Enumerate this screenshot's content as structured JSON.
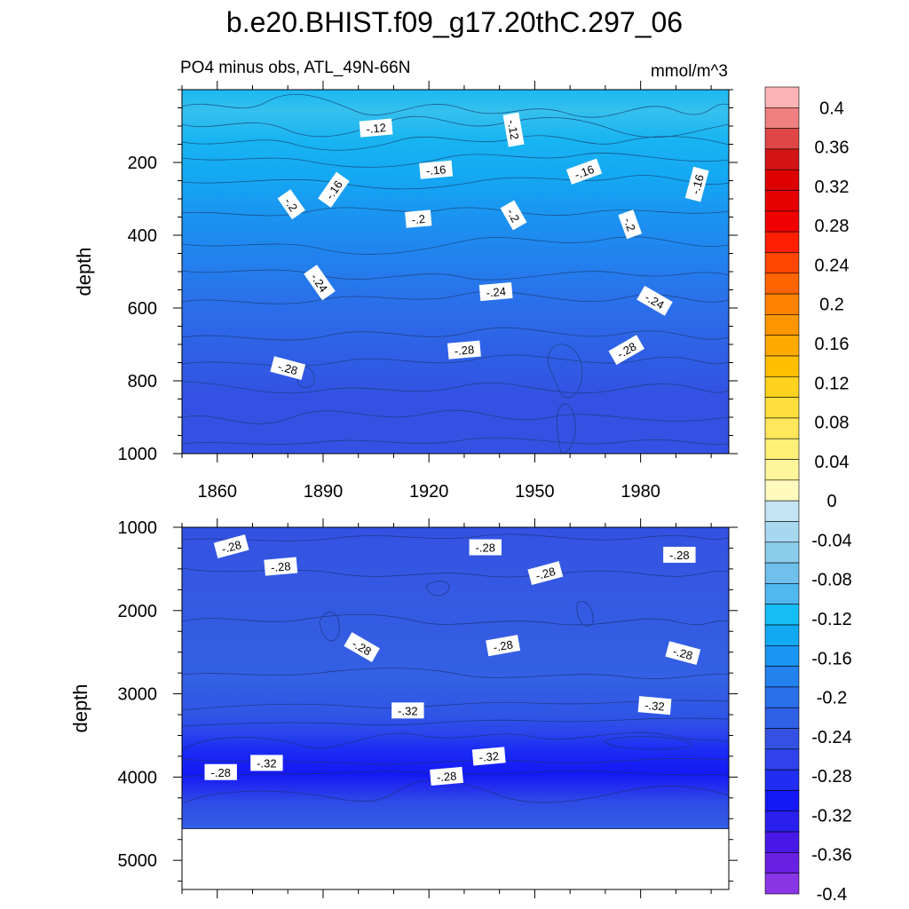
{
  "title": "b.e20.BHIST.f09_g17.20thC.297_06",
  "subtitle_left": "PO4 minus obs, ATL_49N-66N",
  "subtitle_right": "mmol/m^3",
  "colorbar": {
    "tick_labels": [
      "0.4",
      "0.36",
      "0.32",
      "0.28",
      "0.24",
      "0.2",
      "0.16",
      "0.12",
      "0.08",
      "0.04",
      "0",
      "-0.04",
      "-0.08",
      "-0.12",
      "-0.16",
      "-0.2",
      "-0.24",
      "-0.28",
      "-0.32",
      "-0.36",
      "-0.4"
    ],
    "colors": [
      "#fbb4b4",
      "#f08080",
      "#e04646",
      "#d21414",
      "#dc0000",
      "#e60000",
      "#f00000",
      "#ff1e00",
      "#ff4600",
      "#ff6400",
      "#ff8200",
      "#ff9600",
      "#ffaa00",
      "#ffbe00",
      "#ffd21e",
      "#ffde3c",
      "#ffe65a",
      "#fff078",
      "#fff59b",
      "#fffabe",
      "#c4e4f4",
      "#a8d8f0",
      "#8ccceb",
      "#6fc0ea",
      "#50b8ef",
      "#14bef5",
      "#12a9f3",
      "#1a95f1",
      "#2282ee",
      "#2a70ea",
      "#2f60e6",
      "#3352e3",
      "#2f42ec",
      "#1f2ef2",
      "#1418f5",
      "#2a20ee",
      "#4818e6",
      "#6a20e2",
      "#8a36e6"
    ]
  },
  "chart_data": [
    {
      "type": "heatmap",
      "panel": "upper",
      "x_tick_labels": [
        "1860",
        "1890",
        "1920",
        "1950",
        "1980"
      ],
      "x_ticks": [
        1860,
        1890,
        1920,
        1950,
        1980
      ],
      "xlim": [
        1850,
        2005
      ],
      "ylabel": "depth",
      "y_tick_labels": [
        "200",
        "400",
        "600",
        "800",
        "1000"
      ],
      "y_ticks": [
        200,
        400,
        600,
        800,
        1000
      ],
      "ylim": [
        1000,
        0
      ],
      "contour_labels": [
        {
          "text": "-.12",
          "x": 1905,
          "y": 105,
          "rot": -5
        },
        {
          "text": "-.12",
          "x": 1944,
          "y": 110,
          "rot": 80
        },
        {
          "text": "-.16",
          "x": 1922,
          "y": 220,
          "rot": -5
        },
        {
          "text": "-.16",
          "x": 1964,
          "y": 225,
          "rot": -20
        },
        {
          "text": "-.16",
          "x": 1996,
          "y": 260,
          "rot": -75
        },
        {
          "text": "-.16",
          "x": 1893,
          "y": 275,
          "rot": -55
        },
        {
          "text": "-.2",
          "x": 1881,
          "y": 315,
          "rot": 55
        },
        {
          "text": "-.2",
          "x": 1917,
          "y": 355,
          "rot": -5
        },
        {
          "text": "-.2",
          "x": 1944,
          "y": 345,
          "rot": 60
        },
        {
          "text": "-.2",
          "x": 1977,
          "y": 370,
          "rot": 70
        },
        {
          "text": "-.24",
          "x": 1889,
          "y": 530,
          "rot": 55
        },
        {
          "text": "-.24",
          "x": 1939,
          "y": 555,
          "rot": -5
        },
        {
          "text": "-.24",
          "x": 1984,
          "y": 580,
          "rot": 30
        },
        {
          "text": "-.28",
          "x": 1880,
          "y": 765,
          "rot": 15
        },
        {
          "text": "-.28",
          "x": 1930,
          "y": 715,
          "rot": -5
        },
        {
          "text": "-.28",
          "x": 1976,
          "y": 715,
          "rot": -30
        }
      ]
    },
    {
      "type": "heatmap",
      "panel": "lower",
      "x_ticks": [
        1860,
        1890,
        1920,
        1950,
        1980
      ],
      "xlim": [
        1850,
        2005
      ],
      "ylabel": "depth",
      "y_tick_labels": [
        "1000",
        "2000",
        "3000",
        "4000",
        "5000"
      ],
      "y_ticks": [
        1000,
        2000,
        3000,
        4000,
        5000
      ],
      "ylim": [
        5350,
        1000
      ],
      "masked_below_depth": 4620,
      "contour_labels": [
        {
          "text": "-.28",
          "x": 1864,
          "y": 1230,
          "rot": -15
        },
        {
          "text": "-.28",
          "x": 1878,
          "y": 1470,
          "rot": -5
        },
        {
          "text": "-.28",
          "x": 1936,
          "y": 1240,
          "rot": 0
        },
        {
          "text": "-.28",
          "x": 1953,
          "y": 1550,
          "rot": -15
        },
        {
          "text": "-.28",
          "x": 1991,
          "y": 1330,
          "rot": 0
        },
        {
          "text": "-.28",
          "x": 1901,
          "y": 2440,
          "rot": 30
        },
        {
          "text": "-.28",
          "x": 1941,
          "y": 2420,
          "rot": -10
        },
        {
          "text": "-.28",
          "x": 1992,
          "y": 2510,
          "rot": 15
        },
        {
          "text": "-.32",
          "x": 1914,
          "y": 3200,
          "rot": 0
        },
        {
          "text": "-.32",
          "x": 1984,
          "y": 3140,
          "rot": 5
        },
        {
          "text": "-.32",
          "x": 1874,
          "y": 3830,
          "rot": 0
        },
        {
          "text": "-.32",
          "x": 1937,
          "y": 3750,
          "rot": -5
        },
        {
          "text": "-.28",
          "x": 1861,
          "y": 3940,
          "rot": 0
        },
        {
          "text": "-.28",
          "x": 1925,
          "y": 3990,
          "rot": -5
        }
      ]
    }
  ]
}
